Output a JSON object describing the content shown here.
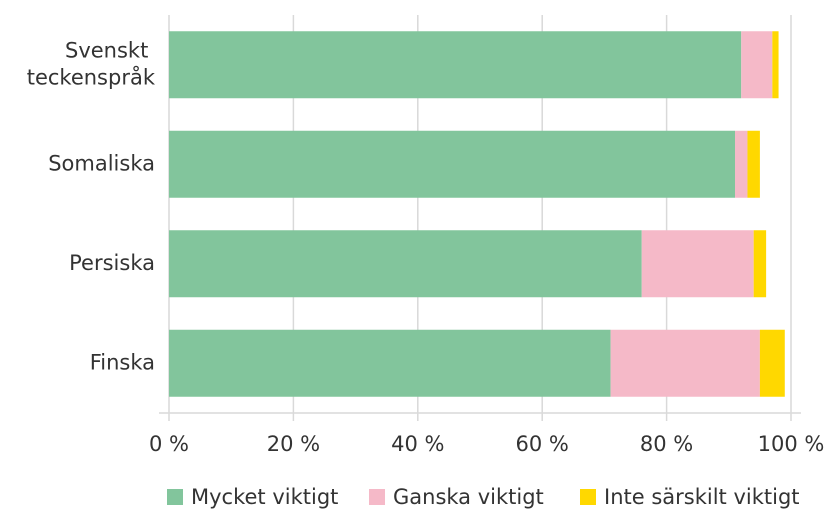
{
  "chart_data": {
    "type": "stacked-bar-horizontal",
    "categories": [
      "Svenskt teckenspråk",
      "Somaliska",
      "Persiska",
      "Finska"
    ],
    "series": [
      {
        "name": "Mycket viktigt",
        "color": "#82c59c",
        "values": [
          92,
          91,
          76,
          71
        ]
      },
      {
        "name": "Ganska viktigt",
        "color": "#f5b9c8",
        "values": [
          5,
          2,
          18,
          24
        ]
      },
      {
        "name": "Inte särskilt viktigt",
        "color": "#ffd800",
        "values": [
          1,
          2,
          2,
          4
        ]
      }
    ],
    "xlim": [
      0,
      100
    ],
    "xticks": [
      {
        "value": 0,
        "label": "0 %"
      },
      {
        "value": 20,
        "label": "20 %"
      },
      {
        "value": 40,
        "label": "40 %"
      },
      {
        "value": 60,
        "label": "60 %"
      },
      {
        "value": 80,
        "label": "80 %"
      },
      {
        "value": 100,
        "label": "100 %"
      }
    ],
    "grid": true,
    "legend": "bottom"
  }
}
